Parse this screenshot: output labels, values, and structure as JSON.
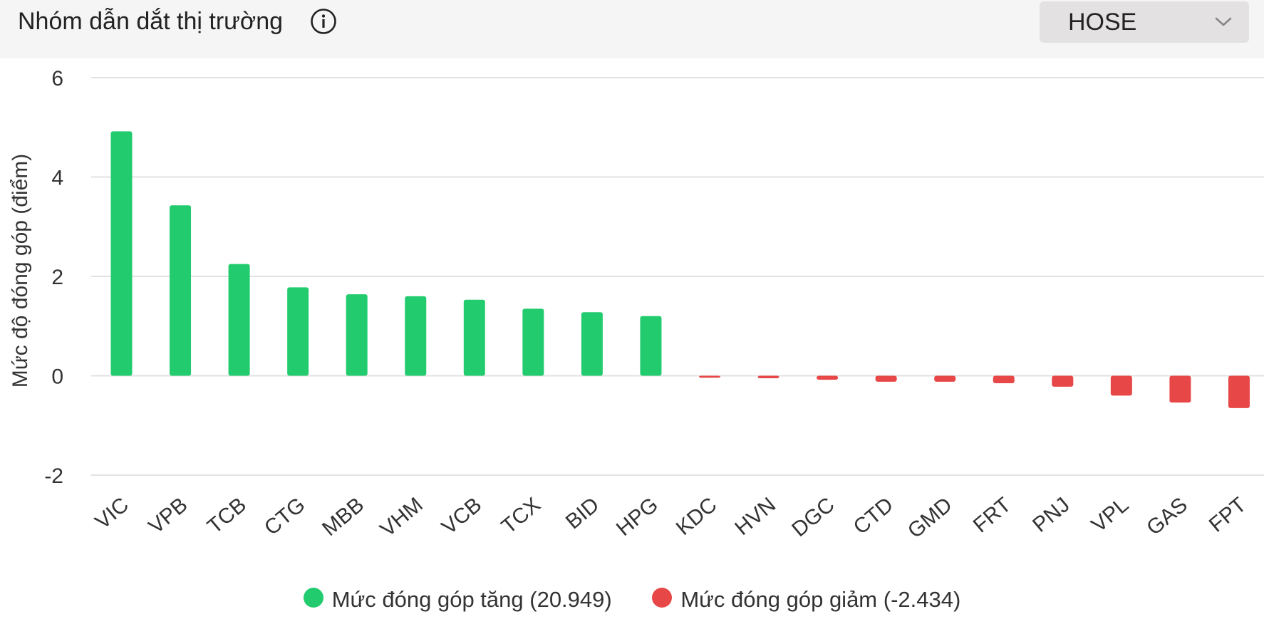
{
  "header": {
    "title": "Nhóm dẫn dắt thị trường",
    "info_icon": "info-circle-icon",
    "exchange_select": {
      "value": "HOSE",
      "icon": "chevron-down-icon"
    }
  },
  "colors": {
    "positive": "#22cc6e",
    "negative": "#e84747",
    "grid": "#e2e2e2"
  },
  "legend": {
    "positive_label": "Mức đóng góp tăng (20.949)",
    "negative_label": "Mức đóng góp giảm (-2.434)"
  },
  "chart_data": {
    "type": "bar",
    "ylabel": "Mức độ đóng góp (điểm)",
    "ylim": [
      -2,
      6
    ],
    "yticks": [
      6,
      4,
      2,
      0,
      -2
    ],
    "grid": true,
    "legend_position": "bottom",
    "categories": [
      "VIC",
      "VPB",
      "TCB",
      "CTG",
      "MBB",
      "VHM",
      "VCB",
      "TCX",
      "BID",
      "HPG",
      "KDC",
      "HVN",
      "DGC",
      "CTD",
      "GMD",
      "FRT",
      "PNJ",
      "VPL",
      "GAS",
      "FPT"
    ],
    "values": [
      4.92,
      3.43,
      2.25,
      1.78,
      1.64,
      1.6,
      1.53,
      1.35,
      1.28,
      1.2,
      -0.04,
      -0.05,
      -0.08,
      -0.12,
      -0.12,
      -0.15,
      -0.22,
      -0.4,
      -0.54,
      -0.65
    ],
    "series": [
      {
        "name": "Mức đóng góp tăng (20.949)",
        "sign": "positive"
      },
      {
        "name": "Mức đóng góp giảm (-2.434)",
        "sign": "negative"
      }
    ]
  }
}
